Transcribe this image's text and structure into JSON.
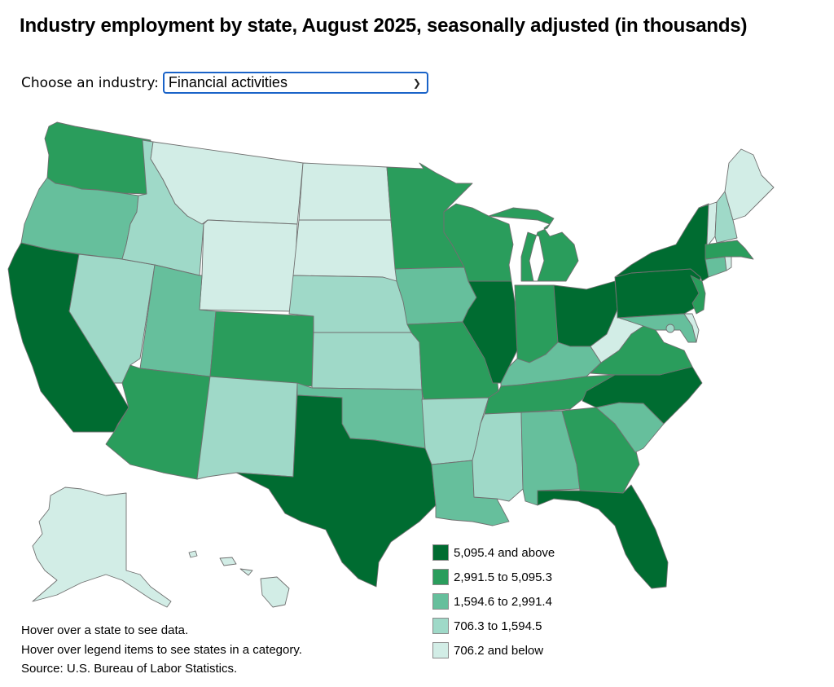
{
  "title": "Industry employment by state, August 2025, seasonally adjusted (in thousands)",
  "chooser": {
    "label": "Choose an industry:",
    "selected": "Financial activities"
  },
  "colors": {
    "c5": "#006c31",
    "c4": "#2a9d5c",
    "c3": "#66bf9c",
    "c2": "#9fd9c8",
    "c1": "#d2ede6"
  },
  "legend": [
    {
      "label": "5,095.4 and above",
      "class": "c5"
    },
    {
      "label": "2,991.5 to 5,095.3",
      "class": "c4"
    },
    {
      "label": "1,594.6 to 2,991.4",
      "class": "c3"
    },
    {
      "label": "706.3 to 1,594.5",
      "class": "c2"
    },
    {
      "label": "706.2 and below",
      "class": "c1"
    }
  ],
  "states": {
    "WA": "c4",
    "OR": "c3",
    "CA": "c5",
    "ID": "c2",
    "NV": "c2",
    "MT": "c1",
    "WY": "c1",
    "UT": "c3",
    "AZ": "c4",
    "CO": "c4",
    "NM": "c2",
    "ND": "c1",
    "SD": "c1",
    "NE": "c2",
    "KS": "c2",
    "OK": "c3",
    "TX": "c5",
    "MN": "c4",
    "IA": "c3",
    "MO": "c4",
    "AR": "c2",
    "LA": "c3",
    "WI": "c4",
    "IL": "c5",
    "MI": "c4",
    "IN": "c4",
    "OH": "c5",
    "KY": "c3",
    "TN": "c4",
    "MS": "c2",
    "AL": "c3",
    "GA": "c4",
    "FL": "c5",
    "SC": "c3",
    "NC": "c5",
    "VA": "c4",
    "WV": "c1",
    "PA": "c5",
    "NY": "c5",
    "NJ": "c4",
    "MD": "c3",
    "DE": "c1",
    "DC": "c2",
    "CT": "c3",
    "RI": "c1",
    "MA": "c4",
    "VT": "c1",
    "NH": "c2",
    "ME": "c1",
    "AK": "c1",
    "HI": "c1"
  },
  "notes": [
    "Hover over a state to see data.",
    "Hover over legend items to see states in a category.",
    "Source: U.S. Bureau of Labor Statistics."
  ]
}
